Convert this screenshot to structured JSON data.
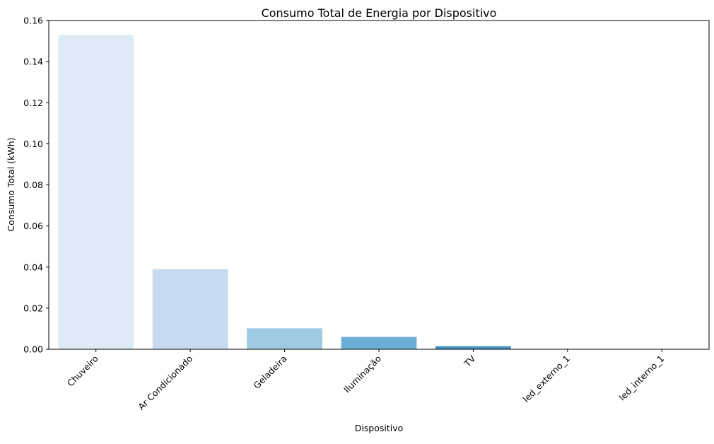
{
  "chart_data": {
    "type": "bar",
    "title": "Consumo Total de Energia por Dispositivo",
    "xlabel": "Dispositivo",
    "ylabel": "Consumo Total (kWh)",
    "categories": [
      "Chuveiro",
      "Ar Condicionado",
      "Geladeira",
      "Iluminação",
      "TV",
      "led_externo_1",
      "led_interno_1"
    ],
    "values": [
      0.153,
      0.039,
      0.0102,
      0.006,
      0.0015,
      0.0,
      0.0
    ],
    "colors": [
      "#deebf7",
      "#c6dbef",
      "#9ecae1",
      "#6baed6",
      "#4292c6",
      "#2171b5",
      "#08519c"
    ],
    "ylim": [
      0,
      0.16
    ],
    "yticks": [
      "0.00",
      "0.02",
      "0.04",
      "0.06",
      "0.08",
      "0.10",
      "0.12",
      "0.14",
      "0.16"
    ],
    "grid": false,
    "legend": "none"
  }
}
